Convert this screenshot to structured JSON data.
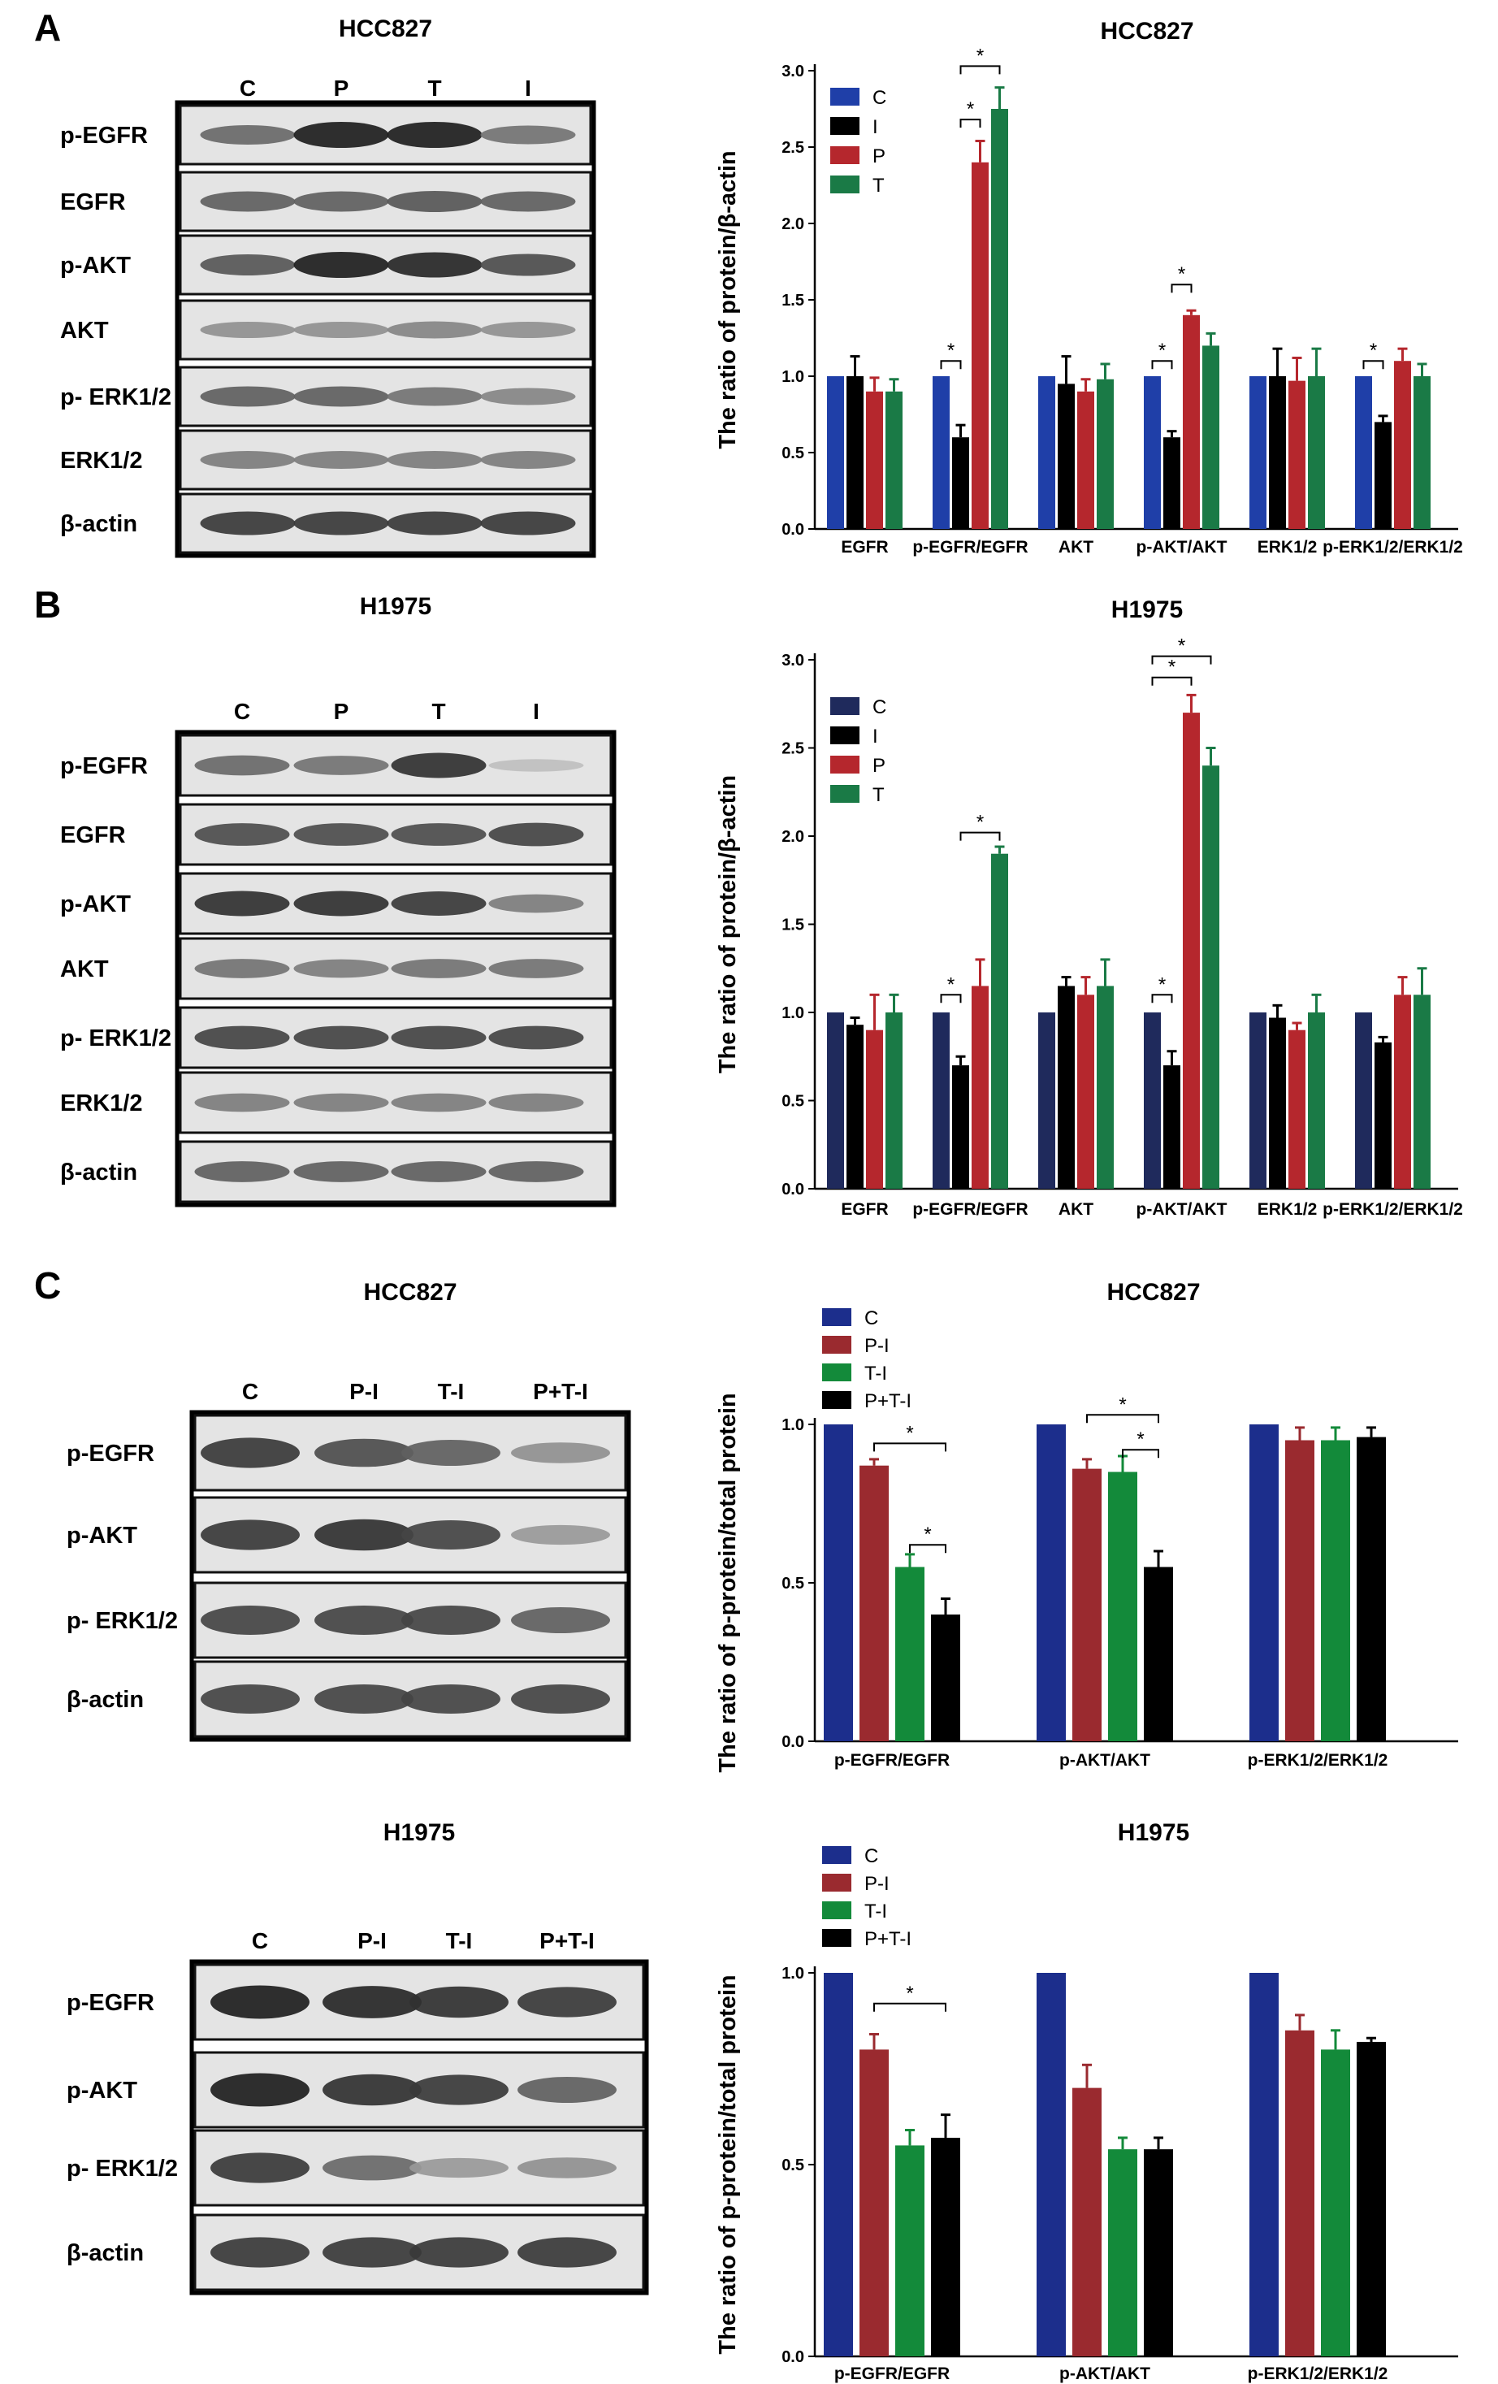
{
  "panels": [
    {
      "letter": "A",
      "blot": {
        "title": "HCC827",
        "lanes": [
          "C",
          "P",
          "T",
          "I"
        ],
        "rows": [
          {
            "label": "p-EGFR",
            "intensity": [
              0.55,
              0.95,
              0.95,
              0.5
            ]
          },
          {
            "label": "EGFR",
            "intensity": [
              0.6,
              0.6,
              0.65,
              0.6
            ]
          },
          {
            "label": "p-AKT",
            "intensity": [
              0.65,
              0.95,
              0.9,
              0.7
            ]
          },
          {
            "label": "AKT",
            "intensity": [
              0.35,
              0.35,
              0.4,
              0.35
            ]
          },
          {
            "label": "p- ERK1/2",
            "intensity": [
              0.6,
              0.6,
              0.5,
              0.4
            ]
          },
          {
            "label": "ERK1/2",
            "intensity": [
              0.45,
              0.45,
              0.45,
              0.45
            ]
          },
          {
            "label": "β-actin",
            "intensity": [
              0.8,
              0.8,
              0.8,
              0.8
            ]
          }
        ]
      },
      "chart_data": {
        "type": "bar",
        "title": "HCC827",
        "ylabel": "The ratio of protein/β-actin",
        "categories": [
          "EGFR",
          "p-EGFR/EGFR",
          "AKT",
          "p-AKT/AKT",
          "ERK1/2",
          "p-ERK1/2/ERK1/2"
        ],
        "ylim": [
          0,
          3.0
        ],
        "yticks": [
          "0.0",
          "0.5",
          "1.0",
          "1.5",
          "2.0",
          "2.5",
          "3.0"
        ],
        "legend_position": "top-left",
        "series": [
          {
            "name": "C",
            "color": "#1f3fa8",
            "values": [
              1.0,
              1.0,
              1.0,
              1.0,
              1.0,
              1.0
            ],
            "errors": [
              0,
              0,
              0,
              0,
              0,
              0
            ]
          },
          {
            "name": "I",
            "color": "#000000",
            "values": [
              1.0,
              0.6,
              0.95,
              0.6,
              1.0,
              0.7
            ],
            "errors": [
              0.13,
              0.08,
              0.18,
              0.04,
              0.18,
              0.04
            ]
          },
          {
            "name": "P",
            "color": "#b5272d",
            "values": [
              0.9,
              2.4,
              0.9,
              1.4,
              0.97,
              1.1
            ],
            "errors": [
              0.09,
              0.14,
              0.08,
              0.03,
              0.15,
              0.08
            ]
          },
          {
            "name": "T",
            "color": "#1a7a46",
            "values": [
              0.9,
              2.75,
              0.98,
              1.2,
              1.0,
              1.0
            ],
            "errors": [
              0.08,
              0.14,
              0.1,
              0.08,
              0.18,
              0.08
            ]
          }
        ],
        "significance": [
          {
            "category": 1,
            "from": 0,
            "to": 1,
            "y": 1.1,
            "label": "*"
          },
          {
            "category": 1,
            "from": 1,
            "to": 2,
            "y": 2.68,
            "label": "*"
          },
          {
            "category": 1,
            "from": 1,
            "to": 3,
            "y": 3.03,
            "label": "*"
          },
          {
            "category": 3,
            "from": 0,
            "to": 1,
            "y": 1.1,
            "label": "*"
          },
          {
            "category": 3,
            "from": 1,
            "to": 2,
            "y": 1.6,
            "label": "*"
          },
          {
            "category": 5,
            "from": 0,
            "to": 1,
            "y": 1.1,
            "label": "*"
          }
        ]
      }
    },
    {
      "letter": "B",
      "blot": {
        "title": "H1975",
        "lanes": [
          "C",
          "P",
          "T",
          "I"
        ],
        "rows": [
          {
            "label": "p-EGFR",
            "intensity": [
              0.55,
              0.5,
              0.85,
              0.1
            ]
          },
          {
            "label": "EGFR",
            "intensity": [
              0.7,
              0.7,
              0.7,
              0.75
            ]
          },
          {
            "label": "p-AKT",
            "intensity": [
              0.85,
              0.85,
              0.8,
              0.45
            ]
          },
          {
            "label": "AKT",
            "intensity": [
              0.5,
              0.45,
              0.5,
              0.5
            ]
          },
          {
            "label": "p- ERK1/2",
            "intensity": [
              0.75,
              0.75,
              0.75,
              0.75
            ]
          },
          {
            "label": "ERK1/2",
            "intensity": [
              0.45,
              0.45,
              0.45,
              0.45
            ]
          },
          {
            "label": "β-actin",
            "intensity": [
              0.6,
              0.6,
              0.6,
              0.6
            ]
          }
        ]
      },
      "chart_data": {
        "type": "bar",
        "title": "H1975",
        "ylabel": "The ratio of protein/β-actin",
        "categories": [
          "EGFR",
          "p-EGFR/EGFR",
          "AKT",
          "p-AKT/AKT",
          "ERK1/2",
          "p-ERK1/2/ERK1/2"
        ],
        "ylim": [
          0,
          3.0
        ],
        "yticks": [
          "0.0",
          "0.5",
          "1.0",
          "1.5",
          "2.0",
          "2.5",
          "3.0"
        ],
        "legend_position": "top-left",
        "series": [
          {
            "name": "C",
            "color": "#1f2a5c",
            "values": [
              1.0,
              1.0,
              1.0,
              1.0,
              1.0,
              1.0
            ],
            "errors": [
              0,
              0,
              0,
              0,
              0,
              0
            ]
          },
          {
            "name": "I",
            "color": "#000000",
            "values": [
              0.93,
              0.7,
              1.15,
              0.7,
              0.97,
              0.83
            ],
            "errors": [
              0.04,
              0.05,
              0.05,
              0.08,
              0.07,
              0.03
            ]
          },
          {
            "name": "P",
            "color": "#b5272d",
            "values": [
              0.9,
              1.15,
              1.1,
              2.7,
              0.9,
              1.1
            ],
            "errors": [
              0.2,
              0.15,
              0.1,
              0.1,
              0.04,
              0.1
            ]
          },
          {
            "name": "T",
            "color": "#1a7a46",
            "values": [
              1.0,
              1.9,
              1.15,
              2.4,
              1.0,
              1.1
            ],
            "errors": [
              0.1,
              0.04,
              0.15,
              0.1,
              0.1,
              0.15
            ]
          }
        ],
        "significance": [
          {
            "category": 1,
            "from": 0,
            "to": 1,
            "y": 1.1,
            "label": "*"
          },
          {
            "category": 1,
            "from": 1,
            "to": 3,
            "y": 2.02,
            "label": "*"
          },
          {
            "category": 3,
            "from": 0,
            "to": 1,
            "y": 1.1,
            "label": "*"
          },
          {
            "category": 3,
            "from": 0,
            "to": 2,
            "y": 2.9,
            "label": "*"
          },
          {
            "category": 3,
            "from": 0,
            "to": 3,
            "y": 3.02,
            "label": "*"
          }
        ]
      }
    },
    {
      "letter": "C",
      "blot": {
        "title": "HCC827",
        "lanes": [
          "C",
          "P-I",
          "T-I",
          "P+T-I"
        ],
        "rows": [
          {
            "label": "p-EGFR",
            "intensity": [
              0.8,
              0.7,
              0.6,
              0.35
            ]
          },
          {
            "label": "p-AKT",
            "intensity": [
              0.8,
              0.85,
              0.75,
              0.3
            ]
          },
          {
            "label": "p- ERK1/2",
            "intensity": [
              0.75,
              0.75,
              0.75,
              0.6
            ]
          },
          {
            "label": "β-actin",
            "intensity": [
              0.75,
              0.75,
              0.75,
              0.75
            ]
          }
        ]
      },
      "chart_data": {
        "type": "bar",
        "title": "HCC827",
        "ylabel": "The ratio of p-protein/total protein",
        "categories": [
          "p-EGFR/EGFR",
          "p-AKT/AKT",
          "p-ERK1/2/ERK1/2"
        ],
        "ylim": [
          0,
          1.0
        ],
        "yticks": [
          "0.0",
          "0.5",
          "1.0"
        ],
        "legend_position": "top-left",
        "series": [
          {
            "name": "C",
            "color": "#1c2e8c",
            "values": [
              1.0,
              1.0,
              1.0
            ],
            "errors": [
              0,
              0,
              0
            ]
          },
          {
            "name": "P-I",
            "color": "#9a2a2f",
            "values": [
              0.87,
              0.86,
              0.95
            ],
            "errors": [
              0.02,
              0.03,
              0.04
            ]
          },
          {
            "name": "T-I",
            "color": "#138a3a",
            "values": [
              0.55,
              0.85,
              0.95
            ],
            "errors": [
              0.04,
              0.05,
              0.04
            ]
          },
          {
            "name": "P+T-I",
            "color": "#000000",
            "values": [
              0.4,
              0.55,
              0.96
            ],
            "errors": [
              0.05,
              0.05,
              0.03
            ]
          }
        ],
        "significance": [
          {
            "category": 0,
            "from": 1,
            "to": 3,
            "y": 0.94,
            "label": "*"
          },
          {
            "category": 0,
            "from": 2,
            "to": 3,
            "y": 0.62,
            "label": "*"
          },
          {
            "category": 1,
            "from": 1,
            "to": 3,
            "y": 1.03,
            "label": "*"
          },
          {
            "category": 1,
            "from": 2,
            "to": 3,
            "y": 0.92,
            "label": "*"
          }
        ]
      }
    },
    {
      "letter": "",
      "blot": {
        "title": "H1975",
        "lanes": [
          "C",
          "P-I",
          "T-I",
          "P+T-I"
        ],
        "rows": [
          {
            "label": "p-EGFR",
            "intensity": [
              0.95,
              0.9,
              0.85,
              0.8
            ]
          },
          {
            "label": "p-AKT",
            "intensity": [
              0.95,
              0.85,
              0.8,
              0.6
            ]
          },
          {
            "label": "p- ERK1/2",
            "intensity": [
              0.8,
              0.55,
              0.3,
              0.35
            ]
          },
          {
            "label": "β-actin",
            "intensity": [
              0.8,
              0.8,
              0.8,
              0.8
            ]
          }
        ]
      },
      "chart_data": {
        "type": "bar",
        "title": "H1975",
        "ylabel": "The ratio of p-protein/total protein",
        "categories": [
          "p-EGFR/EGFR",
          "p-AKT/AKT",
          "p-ERK1/2/ERK1/2"
        ],
        "ylim": [
          0,
          1.0
        ],
        "yticks": [
          "0.0",
          "0.5",
          "1.0"
        ],
        "legend_position": "top-left",
        "series": [
          {
            "name": "C",
            "color": "#1c2e8c",
            "values": [
              1.0,
              1.0,
              1.0
            ],
            "errors": [
              0,
              0,
              0
            ]
          },
          {
            "name": "P-I",
            "color": "#9a2a2f",
            "values": [
              0.8,
              0.7,
              0.85
            ],
            "errors": [
              0.04,
              0.06,
              0.04
            ]
          },
          {
            "name": "T-I",
            "color": "#138a3a",
            "values": [
              0.55,
              0.54,
              0.8
            ],
            "errors": [
              0.04,
              0.03,
              0.05
            ]
          },
          {
            "name": "P+T-I",
            "color": "#000000",
            "values": [
              0.57,
              0.54,
              0.82
            ],
            "errors": [
              0.06,
              0.03,
              0.01
            ]
          }
        ],
        "significance": [
          {
            "category": 0,
            "from": 1,
            "to": 3,
            "y": 0.92,
            "label": "*"
          }
        ]
      }
    }
  ]
}
